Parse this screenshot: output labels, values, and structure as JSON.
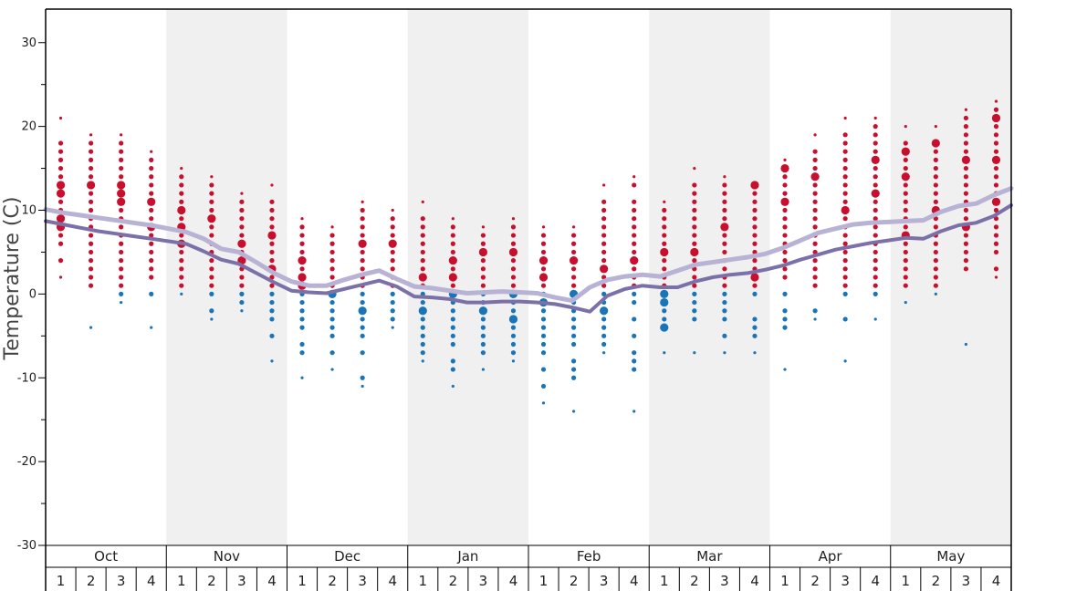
{
  "chart_data": {
    "type": "scatter",
    "title": "",
    "ylabel": "Temperature (C)",
    "xlabel": "",
    "ylim": [
      -30,
      34
    ],
    "yticks": [
      -30,
      -20,
      -10,
      0,
      10,
      20,
      30
    ],
    "months": [
      "Oct",
      "Nov",
      "Dec",
      "Jan",
      "Feb",
      "Mar",
      "Apr",
      "May"
    ],
    "weeks": [
      "1",
      "2",
      "3",
      "4"
    ],
    "grid": "alternating month bands",
    "colors": {
      "warm": "#c8102e",
      "cold": "#1a75b8",
      "avg_line": "#7b70a8",
      "avg_line_light": "#b8b2d4",
      "band": "#f0f0f0",
      "axis": "#000000"
    },
    "series": [
      {
        "kind": "line",
        "style": "dark",
        "values": [
          8.7,
          8.3,
          7.9,
          7.5,
          7.2,
          6.9,
          6.6,
          6.3,
          6.0,
          5.1,
          4.1,
          3.6,
          2.5,
          1.4,
          0.4,
          0.2,
          0.1,
          0.6,
          1.1,
          1.6,
          0.9,
          -0.3,
          -0.4,
          -0.6,
          -1.0,
          -1.0,
          -0.9,
          -0.9,
          -1.0,
          -1.2,
          -1.6,
          -2.1,
          -0.2,
          0.6,
          1.0,
          0.8,
          0.8,
          1.5,
          2.0,
          2.3,
          2.5,
          2.9,
          3.4,
          4.1,
          4.7,
          5.3,
          5.7,
          6.1,
          6.4,
          6.7,
          6.6,
          7.5,
          8.2,
          8.5,
          9.3,
          10.6
        ]
      },
      {
        "kind": "line",
        "style": "light",
        "values": [
          10.1,
          9.7,
          9.4,
          9.1,
          8.8,
          8.5,
          8.2,
          7.8,
          7.4,
          6.6,
          5.4,
          5.0,
          3.8,
          2.5,
          1.5,
          1.0,
          1.0,
          1.7,
          2.3,
          2.8,
          1.8,
          0.9,
          0.7,
          0.4,
          0.1,
          0.2,
          0.3,
          0.2,
          0.1,
          -0.4,
          -0.8,
          0.8,
          1.7,
          2.1,
          2.3,
          2.1,
          2.8,
          3.5,
          3.8,
          4.1,
          4.4,
          4.8,
          5.5,
          6.4,
          7.3,
          7.8,
          8.3,
          8.5,
          8.6,
          8.7,
          8.8,
          9.8,
          10.5,
          10.8,
          11.8,
          12.6
        ]
      }
    ],
    "dots": [
      {
        "x": 0,
        "y": [
          21,
          18,
          17,
          16,
          15,
          14,
          13,
          12,
          11,
          10,
          9,
          8,
          7,
          6,
          4,
          2
        ],
        "big": [
          13,
          12,
          9,
          8
        ]
      },
      {
        "x": 1,
        "y": [
          19,
          18,
          17,
          16,
          15,
          14,
          13,
          12,
          11,
          10,
          9,
          8,
          7,
          6,
          5,
          4,
          3,
          2,
          1,
          -4
        ],
        "big": [
          13
        ]
      },
      {
        "x": 2,
        "y": [
          19,
          18,
          17,
          16,
          15,
          14,
          13,
          12,
          11,
          10,
          9,
          8,
          7,
          6,
          5,
          4,
          3,
          2,
          1,
          0,
          -1
        ],
        "big": [
          13,
          12,
          11
        ]
      },
      {
        "x": 3,
        "y": [
          17,
          16,
          15,
          14,
          13,
          12,
          11,
          10,
          9,
          8,
          7,
          6,
          5,
          4,
          3,
          2,
          0,
          -4
        ],
        "big": [
          11,
          8
        ]
      },
      {
        "x": 4,
        "y": [
          15,
          14,
          13,
          12,
          11,
          10,
          9,
          8,
          7,
          6,
          5,
          4,
          3,
          2,
          1,
          0
        ],
        "big": [
          10,
          8,
          6
        ]
      },
      {
        "x": 5,
        "y": [
          14,
          13,
          12,
          11,
          10,
          9,
          8,
          7,
          6,
          5,
          4,
          3,
          2,
          1,
          0,
          -2,
          -3
        ],
        "big": [
          9
        ]
      },
      {
        "x": 6,
        "y": [
          12,
          11,
          10,
          9,
          8,
          7,
          6,
          5,
          4,
          3,
          2,
          1,
          0,
          -1,
          -2
        ],
        "big": [
          6,
          4
        ]
      },
      {
        "x": 7,
        "y": [
          13,
          11,
          10,
          9,
          8,
          7,
          6,
          5,
          4,
          3,
          2,
          1,
          0,
          -1,
          -2,
          -3,
          -5,
          -8
        ],
        "big": [
          7,
          3
        ]
      },
      {
        "x": 8,
        "y": [
          9,
          8,
          7,
          6,
          5,
          4,
          3,
          2,
          1,
          0,
          -1,
          -2,
          -3,
          -4,
          -6,
          -7,
          -10
        ],
        "big": [
          4,
          2,
          1
        ]
      },
      {
        "x": 9,
        "y": [
          8,
          7,
          6,
          5,
          4,
          3,
          2,
          1,
          0,
          -1,
          -2,
          -3,
          -4,
          -5,
          -7,
          -9
        ],
        "big": [
          0
        ]
      },
      {
        "x": 10,
        "y": [
          11,
          10,
          9,
          8,
          7,
          6,
          5,
          4,
          3,
          2,
          1,
          0,
          -1,
          -2,
          -3,
          -4,
          -5,
          -7,
          -10,
          -11
        ],
        "big": [
          6,
          -2
        ]
      },
      {
        "x": 11,
        "y": [
          10,
          9,
          8,
          7,
          6,
          5,
          4,
          3,
          2,
          1,
          0,
          -1,
          -2,
          -3,
          -4
        ],
        "big": [
          6
        ]
      },
      {
        "x": 12,
        "y": [
          11,
          9,
          8,
          7,
          6,
          5,
          4,
          3,
          2,
          1,
          0,
          -1,
          -2,
          -3,
          -4,
          -5,
          -6,
          -7,
          -8
        ],
        "big": [
          2,
          -2
        ]
      },
      {
        "x": 13,
        "y": [
          9,
          8,
          7,
          6,
          5,
          4,
          3,
          2,
          1,
          0,
          -1,
          -2,
          -3,
          -4,
          -5,
          -6,
          -8,
          -9,
          -11
        ],
        "big": [
          4,
          2,
          0
        ]
      },
      {
        "x": 14,
        "y": [
          8,
          7,
          6,
          5,
          4,
          3,
          2,
          1,
          0,
          -1,
          -2,
          -3,
          -4,
          -5,
          -6,
          -7,
          -9
        ],
        "big": [
          5,
          -2
        ]
      },
      {
        "x": 15,
        "y": [
          9,
          8,
          7,
          6,
          5,
          4,
          3,
          2,
          1,
          0,
          -1,
          -2,
          -3,
          -4,
          -5,
          -6,
          -7,
          -8
        ],
        "big": [
          5,
          0,
          -3
        ]
      },
      {
        "x": 16,
        "y": [
          8,
          7,
          6,
          5,
          4,
          3,
          2,
          1,
          0,
          -1,
          -2,
          -3,
          -4,
          -5,
          -6,
          -7,
          -9,
          -11,
          -13
        ],
        "big": [
          4,
          2,
          -1
        ]
      },
      {
        "x": 17,
        "y": [
          8,
          7,
          6,
          5,
          4,
          3,
          2,
          1,
          0,
          -1,
          -2,
          -3,
          -4,
          -5,
          -6,
          -8,
          -9,
          -10,
          -14
        ],
        "big": [
          4,
          0
        ]
      },
      {
        "x": 18,
        "y": [
          13,
          11,
          10,
          9,
          8,
          7,
          6,
          5,
          4,
          3,
          2,
          1,
          0,
          -1,
          -2,
          -3,
          -4,
          -5,
          -6,
          -7
        ],
        "big": [
          3,
          -2
        ]
      },
      {
        "x": 19,
        "y": [
          14,
          13,
          11,
          10,
          9,
          8,
          7,
          6,
          5,
          4,
          3,
          2,
          1,
          0,
          -1,
          -3,
          -5,
          -7,
          -8,
          -9,
          -14
        ],
        "big": [
          4
        ]
      },
      {
        "x": 20,
        "y": [
          11,
          10,
          9,
          8,
          7,
          6,
          5,
          4,
          3,
          2,
          1,
          0,
          -1,
          -2,
          -3,
          -4,
          -7
        ],
        "big": [
          5,
          0,
          -1,
          -4
        ]
      },
      {
        "x": 21,
        "y": [
          15,
          13,
          12,
          11,
          10,
          9,
          8,
          7,
          6,
          5,
          4,
          3,
          2,
          1,
          0,
          -1,
          -2,
          -3,
          -7
        ],
        "big": [
          5
        ]
      },
      {
        "x": 22,
        "y": [
          14,
          13,
          12,
          11,
          10,
          9,
          8,
          7,
          6,
          5,
          4,
          3,
          2,
          1,
          0,
          -1,
          -2,
          -3,
          -5,
          -7
        ],
        "big": [
          8
        ]
      },
      {
        "x": 23,
        "y": [
          13,
          12,
          11,
          10,
          9,
          8,
          7,
          6,
          5,
          4,
          3,
          2,
          1,
          0,
          -3,
          -4,
          -5,
          -7
        ],
        "big": [
          13,
          2
        ]
      },
      {
        "x": 24,
        "y": [
          16,
          15,
          14,
          13,
          12,
          11,
          10,
          9,
          8,
          7,
          6,
          5,
          4,
          3,
          2,
          0,
          -2,
          -3,
          -4,
          -9
        ],
        "big": [
          15,
          11
        ]
      },
      {
        "x": 25,
        "y": [
          19,
          17,
          16,
          15,
          14,
          13,
          12,
          11,
          10,
          9,
          8,
          7,
          6,
          5,
          4,
          3,
          2,
          1,
          -2,
          -3
        ],
        "big": [
          14
        ]
      },
      {
        "x": 26,
        "y": [
          21,
          19,
          18,
          17,
          16,
          15,
          14,
          13,
          12,
          11,
          10,
          9,
          8,
          7,
          6,
          5,
          4,
          3,
          2,
          1,
          0,
          -3,
          -8
        ],
        "big": [
          10
        ]
      },
      {
        "x": 27,
        "y": [
          21,
          20,
          19,
          18,
          17,
          16,
          15,
          14,
          13,
          12,
          11,
          10,
          9,
          8,
          7,
          6,
          5,
          4,
          3,
          2,
          1,
          0,
          -3
        ],
        "big": [
          16,
          12
        ]
      },
      {
        "x": 28,
        "y": [
          20,
          18,
          17,
          16,
          15,
          14,
          13,
          12,
          11,
          10,
          9,
          8,
          7,
          6,
          5,
          4,
          3,
          2,
          1,
          -1
        ],
        "big": [
          17,
          14,
          7
        ]
      },
      {
        "x": 29,
        "y": [
          20,
          18,
          17,
          16,
          15,
          14,
          13,
          12,
          11,
          10,
          9,
          8,
          7,
          6,
          5,
          4,
          3,
          2,
          1,
          0
        ],
        "big": [
          18,
          10
        ]
      },
      {
        "x": 30,
        "y": [
          22,
          21,
          20,
          19,
          18,
          17,
          16,
          15,
          14,
          13,
          12,
          11,
          10,
          9,
          8,
          7,
          6,
          5,
          4,
          3,
          -6
        ],
        "big": [
          16,
          8
        ]
      },
      {
        "x": 31,
        "y": [
          23,
          22,
          21,
          20,
          19,
          18,
          17,
          16,
          15,
          14,
          13,
          12,
          11,
          10,
          9,
          8,
          7,
          6,
          5,
          3,
          2
        ],
        "big": [
          21,
          16,
          11
        ]
      }
    ]
  }
}
